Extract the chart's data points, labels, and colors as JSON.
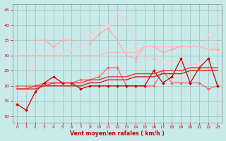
{
  "bg_color": "#c8eaea",
  "grid_color": "#99bbbb",
  "xlabel": "Vent moyen/en rafales ( km/h )",
  "xlabel_color": "#cc0000",
  "tick_color": "#cc0000",
  "x_values": [
    0,
    1,
    2,
    3,
    4,
    5,
    6,
    7,
    9,
    10,
    11,
    12,
    13,
    14,
    15,
    16,
    17,
    18,
    19,
    20,
    21,
    22,
    23
  ],
  "ylim": [
    8,
    47
  ],
  "yticks": [
    10,
    15,
    20,
    25,
    30,
    35,
    40,
    45
  ],
  "series": [
    {
      "color": "#ffaaaa",
      "lw": 0.9,
      "marker": "D",
      "markersize": 2.0,
      "connected": true,
      "values": [
        null,
        null,
        35,
        35,
        33,
        35,
        35,
        null,
        34,
        37,
        39,
        35,
        30,
        29,
        33,
        33,
        31,
        32,
        33,
        33,
        33,
        32,
        32
      ]
    },
    {
      "color": "#ffcccc",
      "lw": 0.9,
      "marker": "D",
      "markersize": 2.0,
      "connected": true,
      "values": [
        19,
        18,
        30,
        30,
        30,
        31,
        32,
        33,
        37,
        39,
        40,
        44,
        41,
        32,
        29,
        29,
        28,
        28,
        28,
        27,
        27,
        37,
        31
      ]
    },
    {
      "color": "#ffbbbb",
      "lw": 0.9,
      "marker": "D",
      "markersize": 2.0,
      "connected": true,
      "values": [
        30,
        30,
        30,
        30,
        30,
        30,
        30,
        30,
        30,
        30,
        31,
        31,
        31,
        31,
        33,
        33,
        33,
        33,
        33,
        33,
        33,
        32,
        32
      ]
    },
    {
      "color": "#ffaaaa",
      "lw": 0.9,
      "marker": "D",
      "markersize": 2.0,
      "connected": false,
      "values": [
        null,
        null,
        null,
        null,
        null,
        null,
        null,
        null,
        null,
        null,
        null,
        31,
        null,
        28,
        null,
        29,
        null,
        null,
        null,
        null,
        26,
        null,
        32
      ]
    },
    {
      "color": "#ff6666",
      "lw": 0.9,
      "marker": "D",
      "markersize": 2.0,
      "connected": true,
      "values": [
        20,
        20,
        20,
        21,
        21,
        21,
        21,
        22,
        22,
        23,
        26,
        26,
        20,
        20,
        20,
        20,
        25,
        21,
        21,
        21,
        21,
        19,
        20
      ]
    },
    {
      "color": "#cc0000",
      "lw": 0.9,
      "marker": "D",
      "markersize": 2.0,
      "connected": true,
      "values": [
        14,
        12,
        18,
        21,
        23,
        21,
        21,
        19,
        20,
        20,
        20,
        20,
        20,
        20,
        20,
        25,
        21,
        23,
        29,
        21,
        26,
        29,
        20
      ]
    },
    {
      "color": "#cc2222",
      "lw": 1.0,
      "marker": null,
      "markersize": 0,
      "connected": true,
      "values": [
        19,
        19,
        19,
        20,
        20,
        20,
        20,
        20,
        21,
        21,
        22,
        22,
        22,
        23,
        23,
        23,
        24,
        24,
        24,
        25,
        25,
        25,
        25
      ]
    },
    {
      "color": "#ee3333",
      "lw": 1.0,
      "marker": null,
      "markersize": 0,
      "connected": true,
      "values": [
        19,
        19,
        20,
        20,
        21,
        21,
        21,
        21,
        22,
        22,
        23,
        23,
        23,
        24,
        24,
        24,
        25,
        25,
        25,
        26,
        26,
        26,
        26
      ]
    }
  ]
}
